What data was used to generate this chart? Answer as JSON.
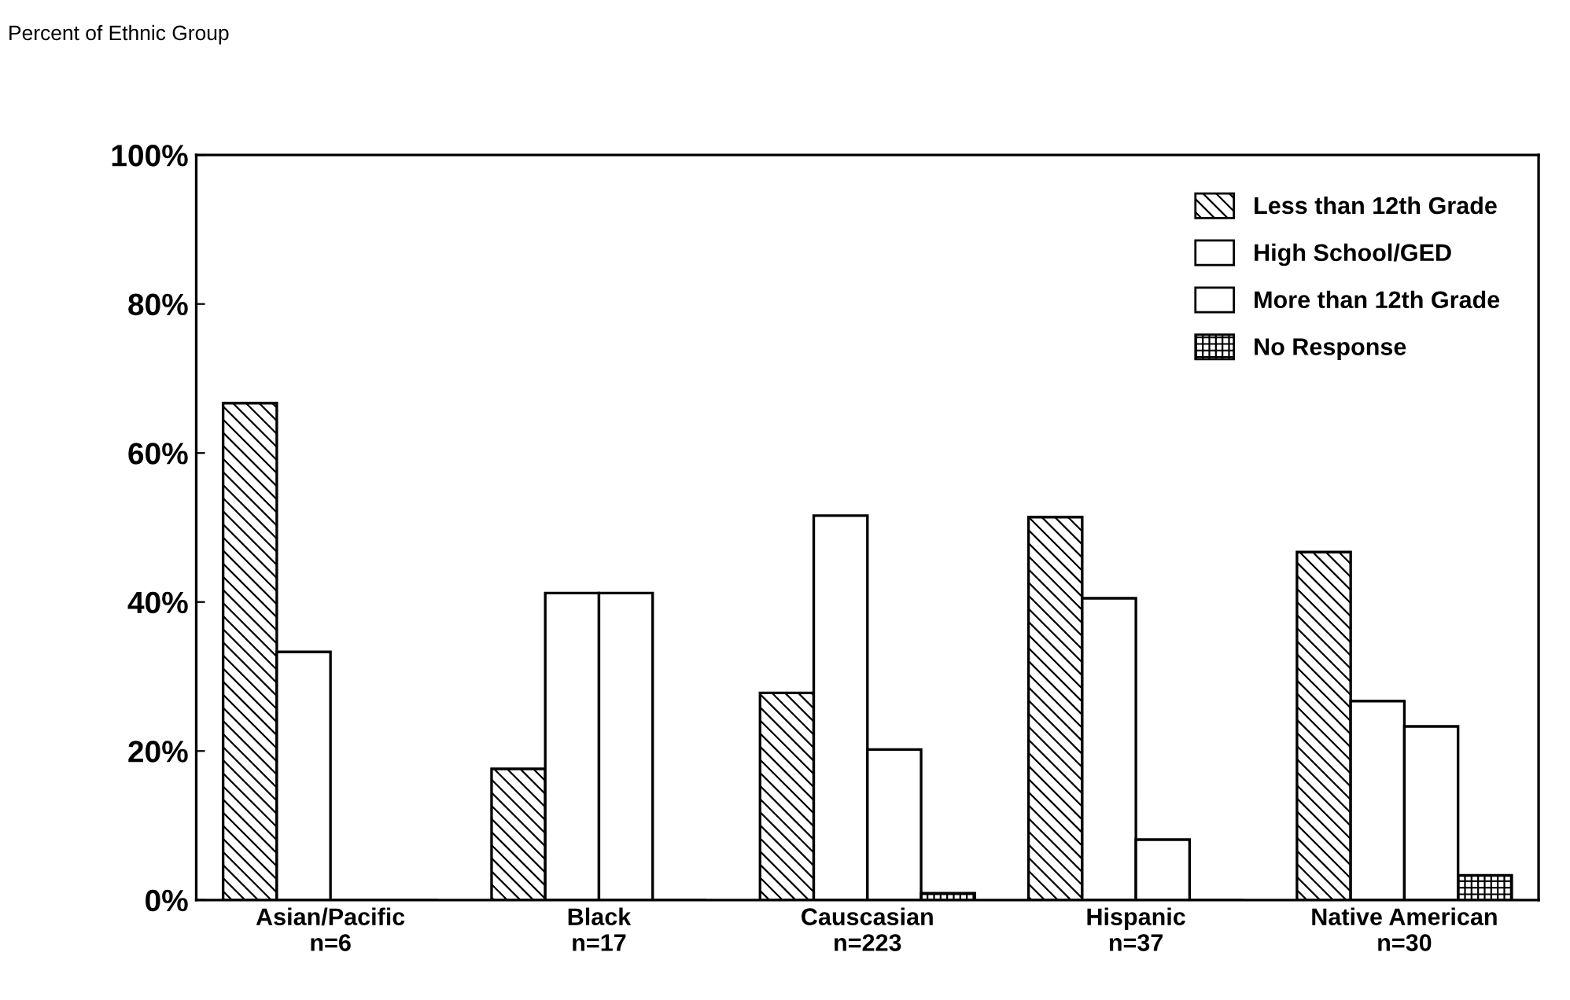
{
  "chart_data": {
    "type": "bar",
    "ylabel": "Percent of Ethnic Group",
    "categories": [
      "Asian/Pacific\nn=6",
      "Black\nn=17",
      "Causcasian\nn=223",
      "Hispanic\nn=37",
      "Native American\nn=30"
    ],
    "series": [
      {
        "name": "Less than 12th Grade",
        "color": "#000000",
        "values": [
          66.7,
          17.6,
          27.8,
          51.4,
          46.7
        ]
      },
      {
        "name": "High School/GED",
        "color": "#ffffff",
        "values": [
          33.3,
          41.2,
          51.6,
          40.5,
          26.7
        ]
      },
      {
        "name": "More than 12th Grade",
        "color": "#ffffff",
        "values": [
          0,
          41.2,
          20.2,
          8.1,
          23.3
        ]
      },
      {
        "name": "No Response",
        "color": "#000000",
        "values": [
          0,
          0,
          0.9,
          0,
          3.3
        ]
      }
    ],
    "ylim": [
      0,
      100
    ],
    "yticks": [
      {
        "value": 0,
        "label": "0%"
      },
      {
        "value": 20,
        "label": "20%"
      },
      {
        "value": 40,
        "label": "40%"
      },
      {
        "value": 60,
        "label": "60%"
      },
      {
        "value": 80,
        "label": "80%"
      },
      {
        "value": 100,
        "label": "100%"
      }
    ],
    "grid": false,
    "legend": "top right"
  }
}
